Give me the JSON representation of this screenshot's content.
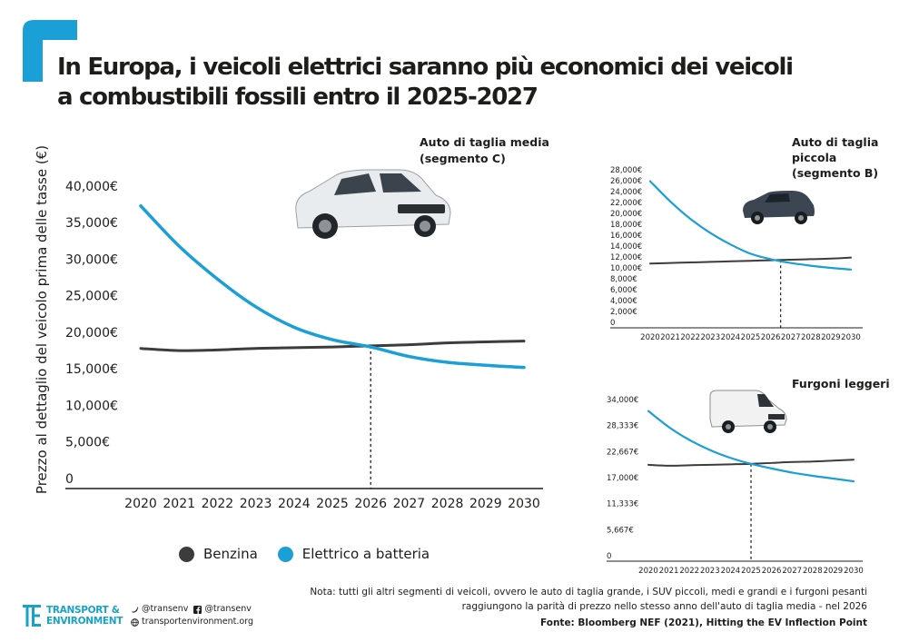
{
  "title": {
    "line1": "In Europa, i veicoli elettrici saranno più economici dei veicoli",
    "line2": "a combustibili fossili entro il 2025-2027"
  },
  "colors": {
    "accent": "#1a9fd6",
    "petrol": "#3c3c3b",
    "electric": "#1a9fd6",
    "brand": "#17a2c7"
  },
  "legend": {
    "petrol_label": "Benzina",
    "electric_label": "Elettrico a batteria"
  },
  "note": {
    "line1": "Nota: tutti gli altri segmenti di veicoli, ovvero le auto di taglia grande, i SUV piccoli, medi e grandi e i furgoni pesanti",
    "line2": "raggiungono la parità di prezzo nello stesso anno dell'auto di taglia media - nel 2026"
  },
  "source": "Fonte: Bloomberg NEF (2021), Hitting the EV Inflection Point",
  "brand": {
    "name_line1": "TRANSPORT &",
    "name_line2": "ENVIRONMENT",
    "twitter": "@transenv",
    "facebook": "@transenv",
    "website": "transportenvironment.org"
  },
  "chart_data": [
    {
      "type": "line",
      "title": "Auto di taglia media (segmento C)",
      "ylabel": "Prezzo al dettaglio del veicolo prima delle tasse (€)",
      "xlabel": "",
      "x": [
        2020,
        2021,
        2022,
        2023,
        2024,
        2025,
        2026,
        2027,
        2028,
        2029,
        2030
      ],
      "ylim": [
        0,
        40000
      ],
      "y_ticks": [
        "40,000€",
        "35,000€",
        "30,000€",
        "25,000€",
        "20,000€",
        "15,000€",
        "10,000€",
        "5,000€",
        "0"
      ],
      "parity_year": 2026,
      "grid": false,
      "image": "car-icon",
      "series": [
        {
          "name": "Benzina",
          "values": [
            17800,
            17500,
            17600,
            17800,
            17900,
            18000,
            18150,
            18300,
            18550,
            18700,
            18800
          ]
        },
        {
          "name": "Elettrico a batteria",
          "values": [
            37300,
            31800,
            27300,
            23500,
            20700,
            19000,
            18000,
            16700,
            15900,
            15500,
            15200
          ]
        }
      ]
    },
    {
      "type": "line",
      "title": "Auto di taglia piccola (segmento B)",
      "x": [
        2020,
        2021,
        2022,
        2023,
        2024,
        2025,
        2026,
        2027,
        2028,
        2029,
        2030
      ],
      "ylim": [
        0,
        28000
      ],
      "y_ticks": [
        "28,000€",
        "26,000€",
        "24,000€",
        "22,000€",
        "20,000€",
        "18,000€",
        "16,000€",
        "14,000€",
        "12,000€",
        "10,000€",
        "8,000€",
        "6,000€",
        "4,000€",
        "2,000€",
        "0"
      ],
      "parity_year": 2026.5,
      "grid": false,
      "image": "small-car-icon",
      "series": [
        {
          "name": "Benzina",
          "values": [
            10800,
            10900,
            11000,
            11100,
            11200,
            11300,
            11400,
            11500,
            11600,
            11700,
            11900
          ]
        },
        {
          "name": "Elettrico a batteria",
          "values": [
            25900,
            22200,
            19000,
            16400,
            14300,
            12600,
            11600,
            10900,
            10400,
            10000,
            9700
          ]
        }
      ]
    },
    {
      "type": "line",
      "title": "Furgoni leggeri",
      "x": [
        2020,
        2021,
        2022,
        2023,
        2024,
        2025,
        2026,
        2027,
        2028,
        2029,
        2030
      ],
      "ylim": [
        0,
        34000
      ],
      "y_ticks": [
        "34,000€",
        "28,333€",
        "22,667€",
        "17,000€",
        "11,333€",
        "5,667€",
        "0"
      ],
      "parity_year": 2025,
      "grid": false,
      "image": "van-icon",
      "series": [
        {
          "name": "Benzina",
          "values": [
            19800,
            19600,
            19700,
            19800,
            19900,
            20000,
            20200,
            20400,
            20500,
            20700,
            20900
          ]
        },
        {
          "name": "Elettrico a batteria",
          "values": [
            31500,
            28000,
            25200,
            23000,
            21300,
            20000,
            19000,
            18100,
            17400,
            16800,
            16200
          ]
        }
      ]
    }
  ]
}
